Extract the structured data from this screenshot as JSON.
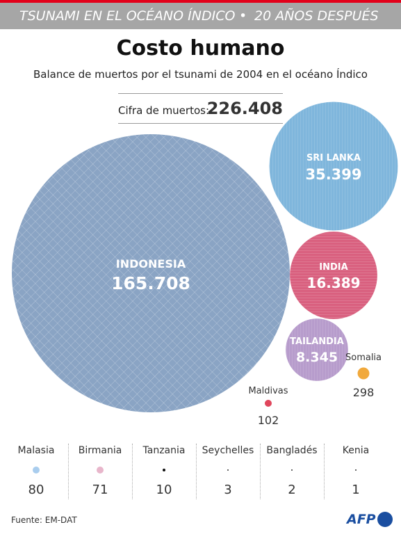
{
  "header": {
    "banner_left": "TSUNAMI EN EL OCÉANO ÍNDICO",
    "banner_bullet": "•",
    "banner_right": "20 AÑOS DESPUÉS",
    "title": "Costo humano",
    "subtitle": "Balance de muertos por el tsunami de 2004 en el océano Índico"
  },
  "total": {
    "label": "Cifra de muertos:",
    "value": "226.408"
  },
  "chart_data": {
    "type": "bubble",
    "title": "Costo humano",
    "subtitle": "Balance de muertos por el tsunami de 2004 en el océano Índico",
    "total": 226408,
    "series": [
      {
        "name": "INDONESIA",
        "label": "165.708",
        "value": 165708,
        "color": "#8aa4c4"
      },
      {
        "name": "SRI LANKA",
        "label": "35.399",
        "value": 35399,
        "color": "#7fb6dc"
      },
      {
        "name": "INDIA",
        "label": "16.389",
        "value": 16389,
        "color": "#d9607f"
      },
      {
        "name": "TAILANDIA",
        "label": "8.345",
        "value": 8345,
        "color": "#b79ccc"
      },
      {
        "name": "Somalia",
        "label": "298",
        "value": 298,
        "color": "#f1a93c"
      },
      {
        "name": "Maldivas",
        "label": "102",
        "value": 102,
        "color": "#e0465c"
      }
    ],
    "small": [
      {
        "name": "Malasia",
        "label": "80",
        "value": 80,
        "color": "#a9cdee"
      },
      {
        "name": "Birmania",
        "label": "71",
        "value": 71,
        "color": "#e8b6cb"
      },
      {
        "name": "Tanzania",
        "label": "10",
        "value": 10,
        "color": "#111111"
      },
      {
        "name": "Seychelles",
        "label": "3",
        "value": 3,
        "color": "#333333"
      },
      {
        "name": "Bangladés",
        "label": "2",
        "value": 2,
        "color": "#333333"
      },
      {
        "name": "Kenia",
        "label": "1",
        "value": 1,
        "color": "#333333"
      }
    ]
  },
  "footer": {
    "source": "Fuente: EM-DAT",
    "logo": "AFP"
  }
}
